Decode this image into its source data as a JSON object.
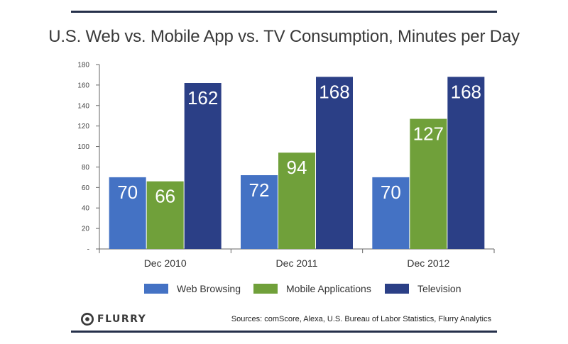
{
  "title": "U.S. Web vs. Mobile App vs. TV Consumption, Minutes per Day",
  "colors": {
    "web": "#4472c4",
    "mobile": "#70a03a",
    "tv": "#2b3f86",
    "rule": "#25304a",
    "axis": "#555555"
  },
  "chart_data": {
    "type": "bar",
    "title": "U.S. Web vs. Mobile App vs. TV Consumption, Minutes per Day",
    "categories": [
      "Dec 2010",
      "Dec 2011",
      "Dec 2012"
    ],
    "series": [
      {
        "name": "Web Browsing",
        "values": [
          70,
          72,
          70
        ],
        "color": "#4472c4"
      },
      {
        "name": "Mobile Applications",
        "values": [
          66,
          94,
          127
        ],
        "color": "#70a03a"
      },
      {
        "name": "Television",
        "values": [
          162,
          168,
          168
        ],
        "color": "#2b3f86"
      }
    ],
    "ylim": [
      0,
      180
    ],
    "yticks": [
      "-",
      "20",
      "40",
      "60",
      "80",
      "100",
      "120",
      "140",
      "160",
      "180"
    ],
    "xlabel": "",
    "ylabel": "",
    "grid": false,
    "legend": "bottom",
    "data_labels": true
  },
  "legend": {
    "items": [
      {
        "label": "Web Browsing",
        "icon": "web-swatch"
      },
      {
        "label": "Mobile Applications",
        "icon": "mobile-swatch"
      },
      {
        "label": "Television",
        "icon": "tv-swatch"
      }
    ]
  },
  "footer": {
    "logo_text": "FLURRY",
    "source": "Sources: comScore, Alexa, U.S. Bureau of Labor Statistics, Flurry Analytics"
  }
}
